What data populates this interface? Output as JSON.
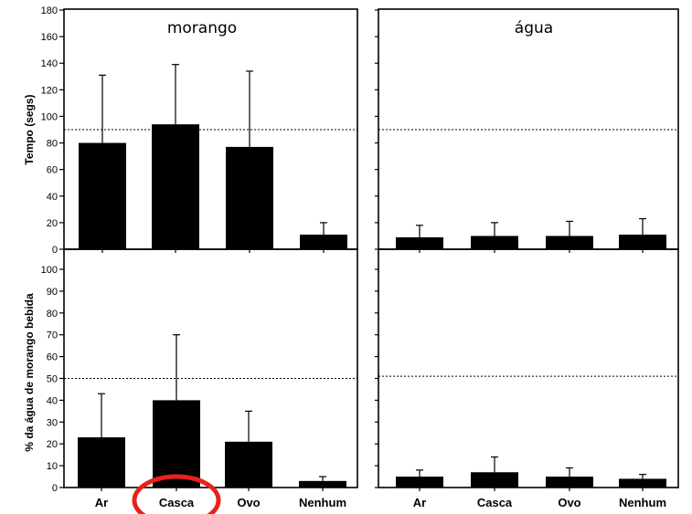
{
  "colors": {
    "bar": "#000000",
    "axis": "#000000",
    "highlight": "#e8221b",
    "background": "#ffffff"
  },
  "chart_data": [
    {
      "type": "bar",
      "title": "morango",
      "ylabel": "Tempo (segs)",
      "categories": [
        "Ar",
        "Casca",
        "Ovo",
        "Nenhum"
      ],
      "values": [
        80,
        94,
        77,
        11
      ],
      "error_plus": [
        131,
        139,
        134,
        20
      ],
      "ylim": [
        0,
        180
      ],
      "yticks": [
        "0",
        "20",
        "40",
        "60",
        "80",
        "100",
        "120",
        "140",
        "160",
        "180"
      ],
      "reference_line": 90
    },
    {
      "type": "bar",
      "title": "água",
      "ylabel": "",
      "categories": [
        "Ar",
        "Casca",
        "Ovo",
        "Nenhum"
      ],
      "values": [
        9,
        10,
        10,
        11
      ],
      "error_plus": [
        18,
        20,
        21,
        23
      ],
      "ylim": [
        0,
        180
      ],
      "reference_line": 90
    },
    {
      "type": "bar",
      "title": "",
      "ylabel": "% da água de morango bebida",
      "categories": [
        "Ar",
        "Casca",
        "Ovo",
        "Nenhum"
      ],
      "values": [
        23,
        40,
        21,
        3
      ],
      "error_plus": [
        43,
        70,
        35,
        5
      ],
      "ylim": [
        0,
        100
      ],
      "yticks": [
        "0",
        "10",
        "20",
        "30",
        "40",
        "50",
        "60",
        "70",
        "80",
        "90",
        "100"
      ],
      "reference_line": 50,
      "highlighted_category": "Casca"
    },
    {
      "type": "bar",
      "title": "",
      "ylabel": "",
      "categories": [
        "Ar",
        "Casca",
        "Ovo",
        "Nenhum"
      ],
      "values": [
        5,
        7,
        5,
        4
      ],
      "error_plus": [
        8,
        14,
        9,
        6
      ],
      "ylim": [
        0,
        100
      ],
      "reference_line": 51
    }
  ]
}
